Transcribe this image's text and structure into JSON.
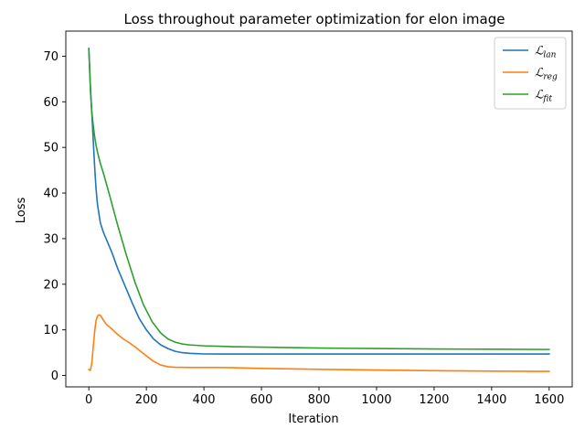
{
  "chart_data": {
    "type": "line",
    "title": "Loss throughout parameter optimization for elon image",
    "xlabel": "Iteration",
    "ylabel": "Loss",
    "xlim": [
      -80,
      1680
    ],
    "ylim": [
      -2.5,
      75.5
    ],
    "xticks": [
      0,
      200,
      400,
      600,
      800,
      1000,
      1200,
      1400,
      1600
    ],
    "yticks": [
      0,
      10,
      20,
      30,
      40,
      50,
      60,
      70
    ],
    "grid": false,
    "legend_position": "top-right",
    "series": [
      {
        "name": "ℒlan",
        "legend_main": "ℒ",
        "legend_sub": "lan",
        "color": "#1f77b4",
        "x": [
          0,
          5,
          10,
          15,
          20,
          25,
          30,
          40,
          50,
          60,
          80,
          100,
          120,
          150,
          175,
          200,
          225,
          250,
          275,
          300,
          325,
          350,
          375,
          400,
          450,
          500,
          600,
          800,
          1000,
          1200,
          1400,
          1600
        ],
        "y": [
          71.5,
          64,
          58,
          52,
          46,
          41,
          37.5,
          33.5,
          31.5,
          30,
          27,
          23.5,
          20.5,
          16,
          12.5,
          10,
          8,
          6.7,
          5.9,
          5.3,
          5.0,
          4.85,
          4.78,
          4.72,
          4.7,
          4.7,
          4.7,
          4.7,
          4.7,
          4.7,
          4.7,
          4.7
        ]
      },
      {
        "name": "ℒreg",
        "legend_main": "ℒ",
        "legend_sub": "reg",
        "color": "#ff7f0e",
        "x": [
          0,
          5,
          10,
          15,
          20,
          25,
          30,
          35,
          40,
          45,
          50,
          55,
          60,
          70,
          80,
          90,
          100,
          110,
          120,
          140,
          160,
          180,
          200,
          225,
          250,
          275,
          300,
          350,
          400,
          450,
          500,
          600,
          800,
          1000,
          1200,
          1400,
          1600
        ],
        "y": [
          1.3,
          1.1,
          2.5,
          6,
          9.5,
          12,
          13,
          13.3,
          13.2,
          12.7,
          12.2,
          11.7,
          11.3,
          10.7,
          10.2,
          9.6,
          9.0,
          8.5,
          8.0,
          7.2,
          6.3,
          5.3,
          4.3,
          3.1,
          2.3,
          1.9,
          1.8,
          1.75,
          1.75,
          1.75,
          1.7,
          1.55,
          1.35,
          1.2,
          1.05,
          0.95,
          0.9
        ]
      },
      {
        "name": "ℒfit",
        "legend_main": "ℒ",
        "legend_sub": "fit",
        "color": "#2ca02c",
        "x": [
          0,
          3,
          6,
          10,
          15,
          20,
          25,
          30,
          40,
          50,
          70,
          100,
          130,
          160,
          190,
          220,
          250,
          275,
          300,
          325,
          350,
          400,
          450,
          500,
          600,
          800,
          1000,
          1200,
          1400,
          1600
        ],
        "y": [
          71.7,
          67,
          62,
          58,
          55,
          52.5,
          50.5,
          49,
          46.5,
          44.5,
          40,
          33,
          26.5,
          20.5,
          15.5,
          11.8,
          9.3,
          8.0,
          7.3,
          6.9,
          6.7,
          6.5,
          6.4,
          6.3,
          6.2,
          6.0,
          5.9,
          5.8,
          5.75,
          5.7
        ]
      }
    ]
  }
}
